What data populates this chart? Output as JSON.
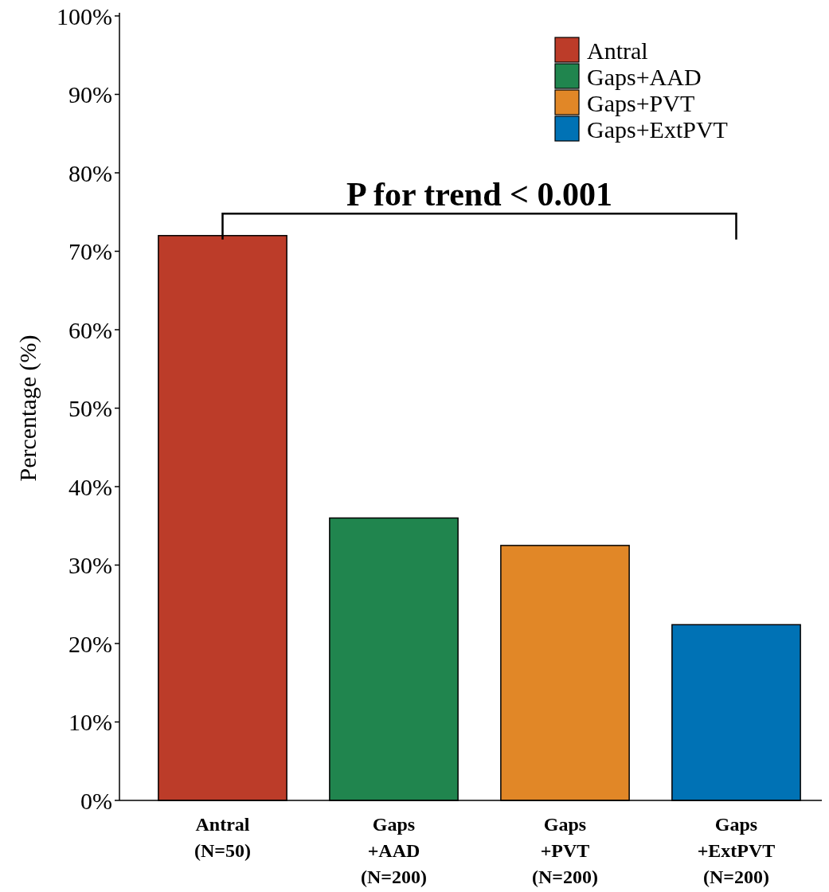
{
  "chart_data": {
    "type": "bar",
    "annotations": [
      "P for trend < 0.001"
    ],
    "ylabel": "Percentage (%)",
    "categories": [
      "Antral\n(N=50)",
      "Gaps\n+AAD\n(N=200)",
      "Gaps\n+PVT\n(N=200)",
      "Gaps\n+ExtPVT\n(N=200)"
    ],
    "series": [
      {
        "name": "Antral",
        "color": "#bc3c29",
        "values": [
          72,
          null,
          null,
          null
        ]
      },
      {
        "name": "Gaps+AAD",
        "color": "#20854e",
        "values": [
          null,
          36,
          null,
          null
        ]
      },
      {
        "name": "Gaps+PVT",
        "color": "#e18727",
        "values": [
          null,
          null,
          32.5,
          null
        ]
      },
      {
        "name": "Gaps+ExtPVT",
        "color": "#0072b5",
        "values": [
          null,
          null,
          null,
          22.4
        ]
      }
    ],
    "ylim": [
      0,
      100
    ],
    "yticks": [
      {
        "value": 0,
        "label": "0%"
      },
      {
        "value": 10,
        "label": "10%"
      },
      {
        "value": 20,
        "label": "20%"
      },
      {
        "value": 30,
        "label": "30%"
      },
      {
        "value": 40,
        "label": "40%"
      },
      {
        "value": 50,
        "label": "50%"
      },
      {
        "value": 60,
        "label": "60%"
      },
      {
        "value": 70,
        "label": "70%"
      },
      {
        "value": 80,
        "label": "80%"
      },
      {
        "value": 90,
        "label": "90%"
      },
      {
        "value": 100,
        "label": "100%"
      }
    ],
    "grid": false,
    "legend": "top right"
  }
}
